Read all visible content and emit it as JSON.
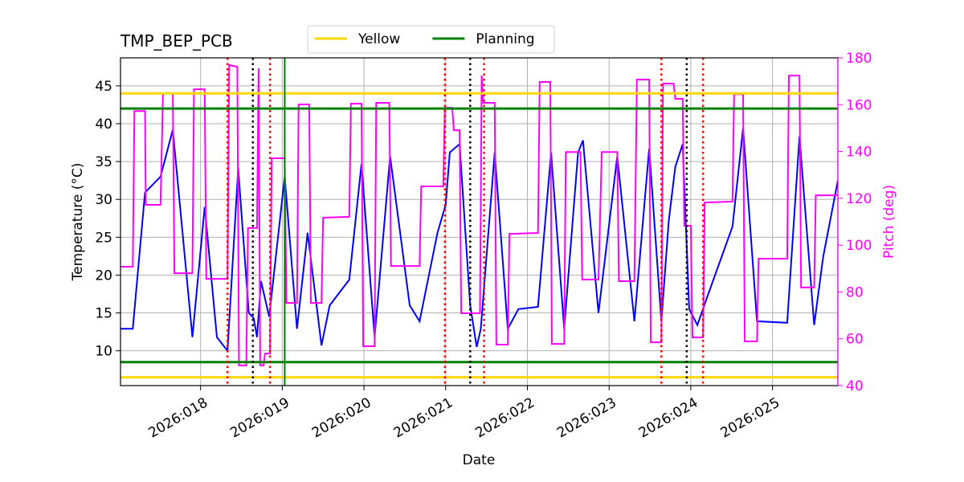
{
  "chart_data": {
    "type": "line",
    "title": "TMP_BEP_PCB",
    "xlabel": "Date",
    "ylabel": "Temperature (°C)",
    "y2label": "Pitch (deg)",
    "xlim": [
      17.02,
      25.8
    ],
    "xticks": [
      {
        "value": 18,
        "label": "2026:018"
      },
      {
        "value": 19,
        "label": "2026:019"
      },
      {
        "value": 20,
        "label": "2026:020"
      },
      {
        "value": 21,
        "label": "2026:021"
      },
      {
        "value": 22,
        "label": "2026:022"
      },
      {
        "value": 23,
        "label": "2026:023"
      },
      {
        "value": 24,
        "label": "2026:024"
      },
      {
        "value": 25,
        "label": "2026:025"
      }
    ],
    "ylim": [
      5.4,
      48.7
    ],
    "yticks": [
      10,
      15,
      20,
      25,
      30,
      35,
      40,
      45
    ],
    "y2lim": [
      40,
      180
    ],
    "y2ticks": [
      40,
      60,
      80,
      100,
      120,
      140,
      160,
      180
    ],
    "y2color": "#ff00ff",
    "grid": true,
    "legend": "upper center",
    "hlines": [
      {
        "name": "Yellow",
        "color": "#ffd700",
        "values": [
          44,
          6.5
        ]
      },
      {
        "name": "Planning",
        "color": "#008000",
        "values": [
          42,
          8.5
        ]
      }
    ],
    "vlines": [
      {
        "color": "#ff0000",
        "style": "dotted",
        "values": [
          18.33,
          18.85,
          20.99,
          21.47,
          23.64,
          24.15
        ]
      },
      {
        "color": "#000000",
        "style": "dotted",
        "values": [
          18.64,
          21.3,
          23.95
        ]
      },
      {
        "color": "#008000",
        "style": "solid",
        "values": [
          19.03
        ]
      }
    ],
    "series": [
      {
        "color": "#0000ff",
        "axis": "y",
        "x": [
          17.02,
          17.17,
          17.32,
          17.51,
          17.66,
          17.9,
          18.05,
          18.2,
          18.33,
          18.46,
          18.59,
          18.65,
          18.69,
          18.74,
          18.84,
          19.03,
          19.18,
          19.31,
          19.48,
          19.58,
          19.82,
          19.97,
          20.13,
          20.32,
          20.56,
          20.68,
          20.9,
          21.0,
          21.05,
          21.17,
          21.3,
          21.38,
          21.43,
          21.6,
          21.76,
          21.89,
          22.13,
          22.29,
          22.45,
          22.62,
          22.68,
          22.87,
          23.1,
          23.31,
          23.49,
          23.64,
          23.73,
          23.81,
          23.9,
          23.98,
          24.08,
          24.2,
          24.51,
          24.64,
          24.81,
          25.18,
          25.33,
          25.51,
          25.62,
          25.8
        ],
        "values": [
          12.9,
          12.9,
          30.9,
          33.0,
          39.2,
          11.8,
          29.0,
          11.8,
          10.0,
          34.1,
          15.0,
          14.3,
          11.8,
          19.2,
          14.5,
          33.0,
          12.9,
          25.6,
          10.7,
          16.0,
          19.4,
          34.7,
          11.8,
          35.7,
          16.0,
          13.9,
          25.6,
          29.3,
          36.2,
          37.3,
          16.0,
          10.5,
          12.9,
          36.2,
          12.9,
          15.5,
          15.8,
          36.2,
          12.9,
          36.2,
          37.8,
          15.0,
          35.7,
          13.9,
          36.7,
          13.9,
          27.2,
          34.3,
          37.3,
          15.5,
          13.4,
          17.1,
          26.4,
          39.4,
          13.9,
          13.7,
          38.3,
          13.4,
          22.4,
          32.5
        ]
      },
      {
        "color": "#ff00ff",
        "axis": "y2",
        "x": [
          17.02,
          17.17,
          17.19,
          17.32,
          17.33,
          17.51,
          17.54,
          17.66,
          17.68,
          17.9,
          17.92,
          18.05,
          18.07,
          18.33,
          18.35,
          18.45,
          18.47,
          18.56,
          18.58,
          18.69,
          18.71,
          18.73,
          18.77,
          18.79,
          18.85,
          18.87,
          19.03,
          19.05,
          19.18,
          19.2,
          19.33,
          19.35,
          19.48,
          19.5,
          19.82,
          19.84,
          19.97,
          19.99,
          20.13,
          20.15,
          20.31,
          20.33,
          20.68,
          20.7,
          20.97,
          20.99,
          21.08,
          21.1,
          21.17,
          21.19,
          21.42,
          21.44,
          21.46,
          21.6,
          21.62,
          21.76,
          21.78,
          22.13,
          22.15,
          22.28,
          22.3,
          22.45,
          22.47,
          22.65,
          22.67,
          22.87,
          22.91,
          23.1,
          23.12,
          23.31,
          23.34,
          23.49,
          23.51,
          23.64,
          23.66,
          23.79,
          23.81,
          23.9,
          23.92,
          24.0,
          24.02,
          24.15,
          24.17,
          24.51,
          24.53,
          24.64,
          24.66,
          24.81,
          24.83,
          25.18,
          25.2,
          25.33,
          25.35,
          25.51,
          25.53,
          25.8
        ],
        "values": [
          90.8,
          90.8,
          157.3,
          157.3,
          117.2,
          117.2,
          164.9,
          164.9,
          88.0,
          88.0,
          166.6,
          166.6,
          85.6,
          85.6,
          176.9,
          176.2,
          48.6,
          48.6,
          107.3,
          107.3,
          175.5,
          48.6,
          48.6,
          53.7,
          53.7,
          137.1,
          137.1,
          75.3,
          75.3,
          160.1,
          160.1,
          75.3,
          75.3,
          111.7,
          112.1,
          160.4,
          160.4,
          56.8,
          56.8,
          160.8,
          160.8,
          91.1,
          91.1,
          125.1,
          125.1,
          158.7,
          158.7,
          149.1,
          149.1,
          70.9,
          70.9,
          172.4,
          160.8,
          160.8,
          57.5,
          57.5,
          104.8,
          105.2,
          169.7,
          169.7,
          57.8,
          57.8,
          139.8,
          139.8,
          85.3,
          85.3,
          139.8,
          139.8,
          84.6,
          84.6,
          170.7,
          170.7,
          58.5,
          58.5,
          169.0,
          169.0,
          162.5,
          162.5,
          108.3,
          108.3,
          60.6,
          60.6,
          118.2,
          118.6,
          164.5,
          164.5,
          58.9,
          58.9,
          94.2,
          94.2,
          172.4,
          172.4,
          81.9,
          81.9,
          121.3,
          121.3
        ]
      }
    ]
  }
}
